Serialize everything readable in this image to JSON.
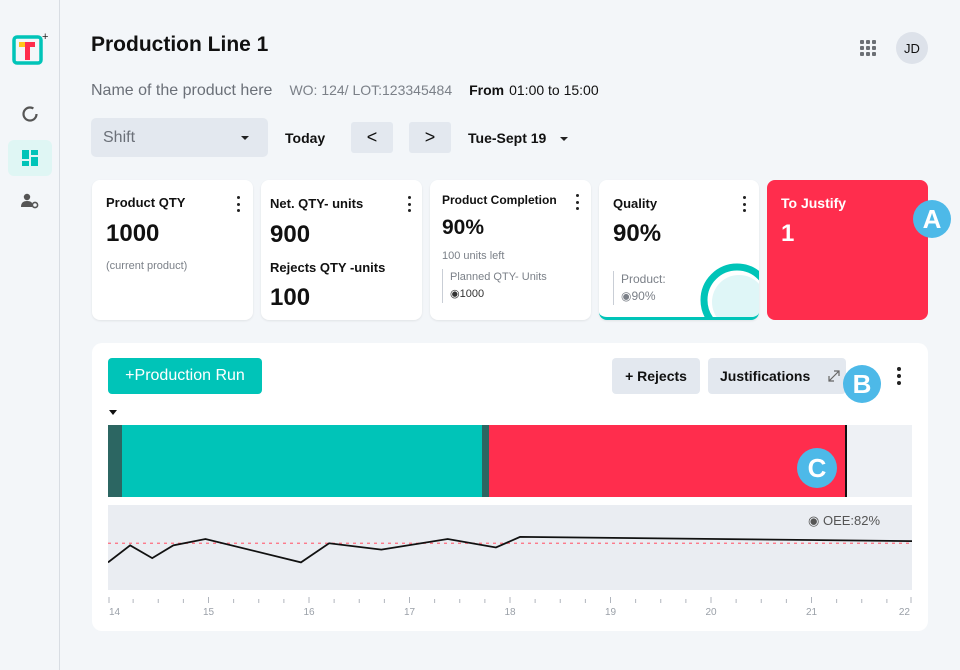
{
  "sidebar": {
    "logo": "app-logo",
    "items": [
      {
        "name": "overview",
        "icon": "loading-ring-icon",
        "active": false
      },
      {
        "name": "dashboard",
        "icon": "dashboard-grid-icon",
        "active": true
      },
      {
        "name": "user-settings",
        "icon": "user-gear-icon",
        "active": false
      }
    ]
  },
  "header": {
    "title": "Production Line 1",
    "user_initials": "JD",
    "product_name": "Name of the product here",
    "wo_lot": "WO: 124/ LOT:123345484",
    "from_label": "From",
    "from_time": "01:00 to 15:00"
  },
  "filters": {
    "shift_placeholder": "Shift",
    "today_label": "Today",
    "prev_label": "<",
    "next_label": ">",
    "date_label": "Tue-Sept 19"
  },
  "cards": {
    "product_qty": {
      "title": "Product QTY",
      "value": "1000",
      "note": "(current product)"
    },
    "net_qty": {
      "title": "Net. QTY- units",
      "value": "900",
      "rejects_title": "Rejects QTY -units",
      "rejects_value": "100"
    },
    "completion": {
      "title": "Product Completion",
      "value": "90%",
      "note": "100 units left",
      "planned_label": "Planned QTY- Units",
      "planned_value": "1000"
    },
    "quality": {
      "title": "Quality",
      "value": "90%",
      "product_label": "Product:",
      "product_value": "90%",
      "gauge_percent": 90
    },
    "to_justify": {
      "title": "To Justify",
      "value": "1"
    }
  },
  "markers": {
    "a": "A",
    "b": "B",
    "c": "C"
  },
  "panel": {
    "production_run_label": "+Production Run",
    "rejects_label": "+ Rejects",
    "justifications_label": "Justifications",
    "oee_label": "OEE:82%"
  },
  "colors": {
    "teal": "#00c4b8",
    "dark_teal": "#2c6662",
    "red": "#ff2d4d",
    "marker_blue": "#4db9e8"
  },
  "chart_data": {
    "type": "line",
    "title": "",
    "xlabel": "",
    "ylabel": "",
    "x_ticks": [
      "14",
      "15",
      "16",
      "17",
      "18",
      "19",
      "20",
      "21",
      "22"
    ],
    "xlim": [
      14,
      22
    ],
    "ylim": [
      60,
      100
    ],
    "target_line": 82,
    "target_label": "OEE:82%",
    "series": [
      {
        "name": "OEE",
        "x": [
          14.0,
          14.22,
          14.44,
          14.65,
          14.97,
          15.92,
          16.2,
          16.72,
          17.38,
          17.86,
          18.1,
          22.0
        ],
        "y": [
          73,
          81,
          75,
          81,
          84,
          73,
          82,
          79,
          84,
          80,
          85,
          83
        ]
      }
    ],
    "timeline": {
      "segments": [
        {
          "state": "setup",
          "start": 0.0,
          "end": 0.018,
          "color": "#2c6662"
        },
        {
          "state": "running",
          "start": 0.018,
          "end": 0.465,
          "color": "#00c4b8"
        },
        {
          "state": "setup",
          "start": 0.465,
          "end": 0.474,
          "color": "#2c6662"
        },
        {
          "state": "stopped",
          "start": 0.474,
          "end": 0.919,
          "color": "#ff2d4d"
        }
      ]
    }
  }
}
